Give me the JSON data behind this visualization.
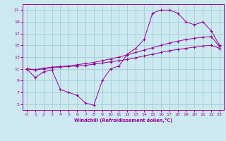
{
  "xlabel": "Windchill (Refroidissement éolien,°C)",
  "xlim": [
    -0.5,
    23.5
  ],
  "ylim": [
    4,
    22
  ],
  "xticks": [
    0,
    1,
    2,
    3,
    4,
    5,
    6,
    7,
    8,
    9,
    10,
    11,
    12,
    13,
    14,
    15,
    16,
    17,
    18,
    19,
    20,
    21,
    22,
    23
  ],
  "yticks": [
    5,
    7,
    9,
    11,
    13,
    15,
    17,
    19,
    21
  ],
  "bg_color": "#cce8f0",
  "line_color": "#990099",
  "grid_color": "#99cccc",
  "line1_x": [
    0,
    1,
    2,
    3,
    4,
    5,
    6,
    7,
    8,
    9,
    10,
    11,
    12,
    13,
    14,
    15,
    16,
    17,
    18,
    19,
    20,
    21,
    22,
    23
  ],
  "line1_y": [
    11,
    9.5,
    10.5,
    10.8,
    7.5,
    7.0,
    6.5,
    5.2,
    4.8,
    9.0,
    11.0,
    11.5,
    13.5,
    14.5,
    16.0,
    20.5,
    21.0,
    21.0,
    20.5,
    19.0,
    18.5,
    19.0,
    17.5,
    15.0
  ],
  "line2_x": [
    0,
    1,
    2,
    3,
    4,
    5,
    6,
    7,
    8,
    9,
    10,
    11,
    12,
    13,
    14,
    15,
    16,
    17,
    18,
    19,
    20,
    21,
    22,
    23
  ],
  "line2_y": [
    11.0,
    10.8,
    11.0,
    11.2,
    11.3,
    11.4,
    11.5,
    11.6,
    11.8,
    12.0,
    12.2,
    12.4,
    12.6,
    12.9,
    13.2,
    13.5,
    13.8,
    14.1,
    14.3,
    14.5,
    14.7,
    14.9,
    15.0,
    14.5
  ],
  "line3_x": [
    0,
    1,
    2,
    3,
    4,
    5,
    6,
    7,
    8,
    9,
    10,
    11,
    12,
    13,
    14,
    15,
    16,
    17,
    18,
    19,
    20,
    21,
    22,
    23
  ],
  "line3_y": [
    11.0,
    10.9,
    11.1,
    11.3,
    11.4,
    11.5,
    11.7,
    11.9,
    12.1,
    12.4,
    12.7,
    13.0,
    13.4,
    13.8,
    14.2,
    14.6,
    15.0,
    15.4,
    15.7,
    16.0,
    16.2,
    16.4,
    16.5,
    14.8
  ]
}
